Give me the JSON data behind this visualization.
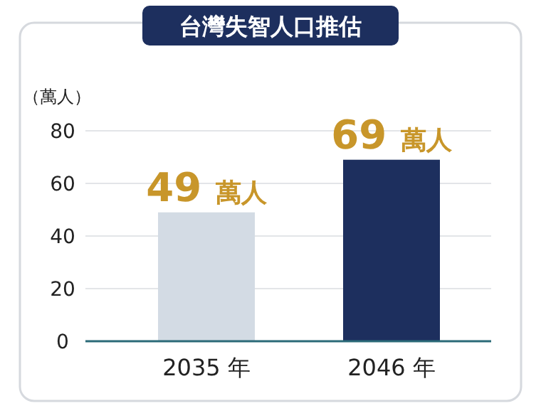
{
  "chart_data": {
    "type": "bar",
    "title": "台灣失智人口推估",
    "ylabel": "（萬人）",
    "categories": [
      "2035 年",
      "2046 年"
    ],
    "values": [
      49,
      69
    ],
    "colors": [
      "#d3dbe4",
      "#1d2f5e"
    ],
    "value_labels": [
      "49 萬人",
      "69 萬人"
    ],
    "ylim": [
      0,
      80
    ],
    "yticks": [
      0,
      20,
      40,
      60,
      80
    ],
    "grid": "y"
  }
}
